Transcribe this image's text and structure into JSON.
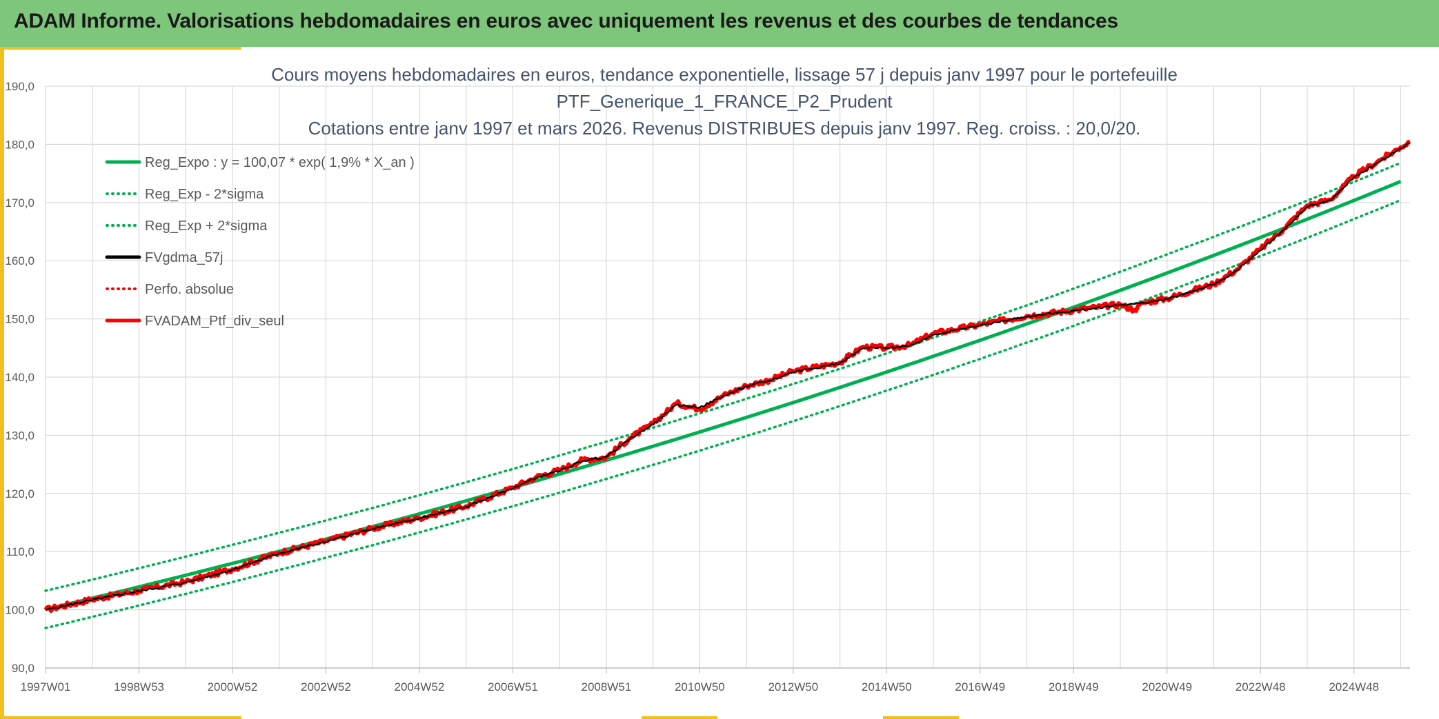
{
  "header": {
    "title": "ADAM Informe. Valorisations hebdomadaires en euros avec uniquement les revenus et des courbes de tendances"
  },
  "colors": {
    "header_green": "#7dc67b",
    "accent_yellow": "#f2c01e",
    "trend_green": "#00b050",
    "series_red": "#ff0000",
    "series_black": "#000000",
    "grid": "#d9d9d9",
    "title_text": "#44546a"
  },
  "chart_data": {
    "type": "line",
    "title_lines": [
      "Cours moyens hebdomadaires en euros, tendance exponentielle, lissage 57 j depuis janv 1997 pour le portefeuille",
      "PTF_Generique_1_FRANCE_P2_Prudent",
      "Cotations entre janv 1997 et mars 2026. Revenus DISTRIBUES depuis janv 1997. Reg. croiss. : 20,0/20."
    ],
    "xlabel": "",
    "ylabel": "",
    "x_range": [
      1997.0,
      2026.2
    ],
    "ylim": [
      90,
      190
    ],
    "y_ticks": [
      "190,0",
      "180,0",
      "170,0",
      "160,0",
      "150,0",
      "140,0",
      "130,0",
      "120,0",
      "110,0",
      "100,0",
      "90,0"
    ],
    "x_ticks": [
      {
        "label": "1997W01",
        "x": 1997.0
      },
      {
        "label": "1998W53",
        "x": 1999.0
      },
      {
        "label": "2000W52",
        "x": 2001.0
      },
      {
        "label": "2002W52",
        "x": 2003.0
      },
      {
        "label": "2004W52",
        "x": 2005.0
      },
      {
        "label": "2006W51",
        "x": 2007.0
      },
      {
        "label": "2008W51",
        "x": 2009.0
      },
      {
        "label": "2010W50",
        "x": 2011.0
      },
      {
        "label": "2012W50",
        "x": 2013.0
      },
      {
        "label": "2014W50",
        "x": 2015.0
      },
      {
        "label": "2016W49",
        "x": 2017.0
      },
      {
        "label": "2018W49",
        "x": 2019.0
      },
      {
        "label": "2020W49",
        "x": 2021.0
      },
      {
        "label": "2022W48",
        "x": 2023.0
      },
      {
        "label": "2024W48",
        "x": 2025.0
      }
    ],
    "grid": true,
    "legend_position": "top-left",
    "trend": {
      "a": 100.07,
      "rate": 0.019,
      "sigma_band": 3.2
    },
    "legend": [
      {
        "name": "Reg_Expo : y = 100,07 * exp( 1,9% *  X_an )",
        "color": "#00b050",
        "style": "solid"
      },
      {
        "name": "Reg_Exp - 2*sigma",
        "color": "#00b050",
        "style": "dotted"
      },
      {
        "name": "Reg_Exp + 2*sigma",
        "color": "#00b050",
        "style": "dotted"
      },
      {
        "name": "FVgdma_57j",
        "color": "#000000",
        "style": "solid"
      },
      {
        "name": "Perfo. absolue",
        "color": "#ff0000",
        "style": "dotted"
      },
      {
        "name": "FVADAM_Ptf_div_seul",
        "color": "#ff0000",
        "style": "solid"
      }
    ],
    "series": [
      {
        "name": "FVADAM_Ptf_div_seul",
        "x": [
          1997.0,
          1998.0,
          1999.0,
          2000.0,
          2001.0,
          2002.0,
          2003.0,
          2004.0,
          2005.0,
          2006.0,
          2007.0,
          2007.5,
          2008.0,
          2008.5,
          2009.0,
          2009.5,
          2010.0,
          2010.5,
          2011.0,
          2011.5,
          2012.0,
          2012.5,
          2013.0,
          2014.0,
          2014.5,
          2015.0,
          2015.5,
          2016.0,
          2017.0,
          2018.0,
          2019.0,
          2020.0,
          2020.3,
          2020.5,
          2021.0,
          2022.0,
          2022.5,
          2023.0,
          2023.5,
          2024.0,
          2024.5,
          2025.0,
          2025.5,
          2026.0,
          2026.2
        ],
        "y": [
          100.0,
          101.8,
          103.3,
          104.8,
          107.0,
          109.8,
          111.8,
          114.0,
          115.8,
          117.8,
          121.0,
          122.8,
          124.0,
          125.8,
          126.2,
          129.5,
          132.0,
          135.5,
          134.5,
          136.8,
          138.5,
          139.5,
          141.0,
          142.5,
          145.2,
          145.0,
          145.5,
          147.5,
          149.0,
          150.5,
          151.5,
          152.5,
          151.5,
          152.8,
          153.5,
          156.0,
          158.5,
          162.0,
          165.5,
          169.5,
          170.5,
          174.5,
          177.0,
          179.5,
          180.5
        ]
      },
      {
        "name": "FVgdma_57j",
        "x": [
          1997.0,
          1998.0,
          1999.0,
          2000.0,
          2001.0,
          2002.0,
          2003.0,
          2004.0,
          2005.0,
          2006.0,
          2007.0,
          2007.5,
          2008.0,
          2008.5,
          2009.0,
          2009.5,
          2010.0,
          2010.5,
          2011.0,
          2011.5,
          2012.0,
          2012.5,
          2013.0,
          2014.0,
          2014.5,
          2015.0,
          2015.5,
          2016.0,
          2017.0,
          2018.0,
          2019.0,
          2020.0,
          2020.5,
          2021.0,
          2022.0,
          2022.5,
          2023.0,
          2023.5,
          2024.0,
          2024.5,
          2025.0,
          2025.5,
          2026.0,
          2026.2
        ],
        "y": [
          100.0,
          101.7,
          103.2,
          104.7,
          106.9,
          109.7,
          111.7,
          113.9,
          115.7,
          117.7,
          120.9,
          122.7,
          123.9,
          125.6,
          126.3,
          129.3,
          131.9,
          135.2,
          134.8,
          136.7,
          138.4,
          139.4,
          140.9,
          142.4,
          145.0,
          145.0,
          145.4,
          147.3,
          148.9,
          150.4,
          151.4,
          152.4,
          152.7,
          153.4,
          155.9,
          158.3,
          161.8,
          165.3,
          169.3,
          170.4,
          174.3,
          176.8,
          179.3,
          180.2
        ]
      }
    ]
  }
}
